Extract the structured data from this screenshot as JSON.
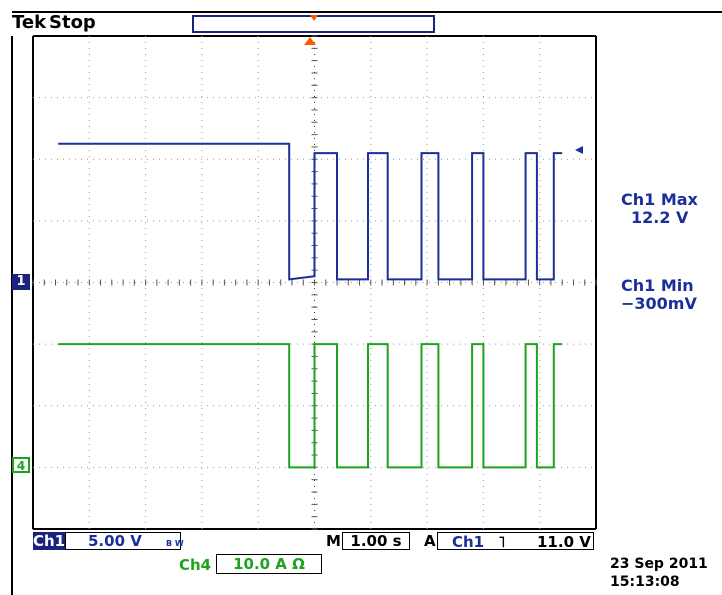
{
  "header": {
    "brand": "Tek",
    "state": "Stop"
  },
  "readouts": {
    "ch1_max_label": "Ch1 Max",
    "ch1_max_value": "12.2 V",
    "ch1_min_label": "Ch1 Min",
    "ch1_min_value": "−300mV"
  },
  "markers": {
    "ch1": "1",
    "ch4": "4"
  },
  "footer": {
    "ch1_label": "Ch1",
    "ch1_scale": "5.00 V",
    "ch1_bw": "B W",
    "timebase_label": "M",
    "timebase_value": "1.00 s",
    "trigger_label": "A",
    "trigger_source": "Ch1",
    "trigger_slope": "˥",
    "trigger_level": "11.0 V",
    "ch4_label": "Ch4",
    "ch4_scale": "10.0 A Ω",
    "date": "23 Sep  2011",
    "time": "15:13:08"
  },
  "colors": {
    "ch1": "#1a2f9a",
    "ch4": "#1fa31f",
    "trigger": "#ff5a00",
    "grid": "#999999"
  },
  "chart_data": {
    "type": "line",
    "title": "",
    "xlabel": "",
    "ylabel": "",
    "xlim": [
      -5,
      5
    ],
    "ylim": [
      -4,
      4
    ],
    "grid": true,
    "x_divisions": 10,
    "y_divisions": 8,
    "series": [
      {
        "channel": "Ch1",
        "points": [
          [
            -4.55,
            2.25
          ],
          [
            -0.45,
            2.25
          ],
          [
            -0.45,
            0.05
          ],
          [
            0.0,
            0.1
          ],
          [
            0.0,
            2.1
          ],
          [
            0.4,
            2.1
          ],
          [
            0.4,
            0.05
          ],
          [
            0.95,
            0.05
          ],
          [
            0.95,
            2.1
          ],
          [
            1.3,
            2.1
          ],
          [
            1.3,
            0.05
          ],
          [
            1.9,
            0.05
          ],
          [
            1.9,
            2.1
          ],
          [
            2.2,
            2.1
          ],
          [
            2.2,
            0.05
          ],
          [
            2.8,
            0.05
          ],
          [
            2.8,
            2.1
          ],
          [
            3.0,
            2.1
          ],
          [
            3.0,
            0.05
          ],
          [
            3.75,
            0.05
          ],
          [
            3.75,
            2.1
          ],
          [
            3.95,
            2.1
          ],
          [
            3.95,
            0.05
          ],
          [
            4.25,
            0.05
          ],
          [
            4.25,
            2.1
          ],
          [
            4.4,
            2.1
          ]
        ]
      },
      {
        "channel": "Ch4",
        "points": [
          [
            -4.55,
            -1.0
          ],
          [
            -0.45,
            -1.0
          ],
          [
            -0.45,
            -3.0
          ],
          [
            0.0,
            -3.0
          ],
          [
            0.0,
            -1.0
          ],
          [
            0.4,
            -1.0
          ],
          [
            0.4,
            -3.0
          ],
          [
            0.95,
            -3.0
          ],
          [
            0.95,
            -1.0
          ],
          [
            1.3,
            -1.0
          ],
          [
            1.3,
            -3.0
          ],
          [
            1.9,
            -3.0
          ],
          [
            1.9,
            -1.0
          ],
          [
            2.2,
            -1.0
          ],
          [
            2.2,
            -3.0
          ],
          [
            2.8,
            -3.0
          ],
          [
            2.8,
            -1.0
          ],
          [
            3.0,
            -1.0
          ],
          [
            3.0,
            -3.0
          ],
          [
            3.75,
            -3.0
          ],
          [
            3.75,
            -1.0
          ],
          [
            3.95,
            -1.0
          ],
          [
            3.95,
            -3.0
          ],
          [
            4.25,
            -3.0
          ],
          [
            4.25,
            -1.0
          ],
          [
            4.4,
            -1.0
          ]
        ]
      }
    ]
  }
}
